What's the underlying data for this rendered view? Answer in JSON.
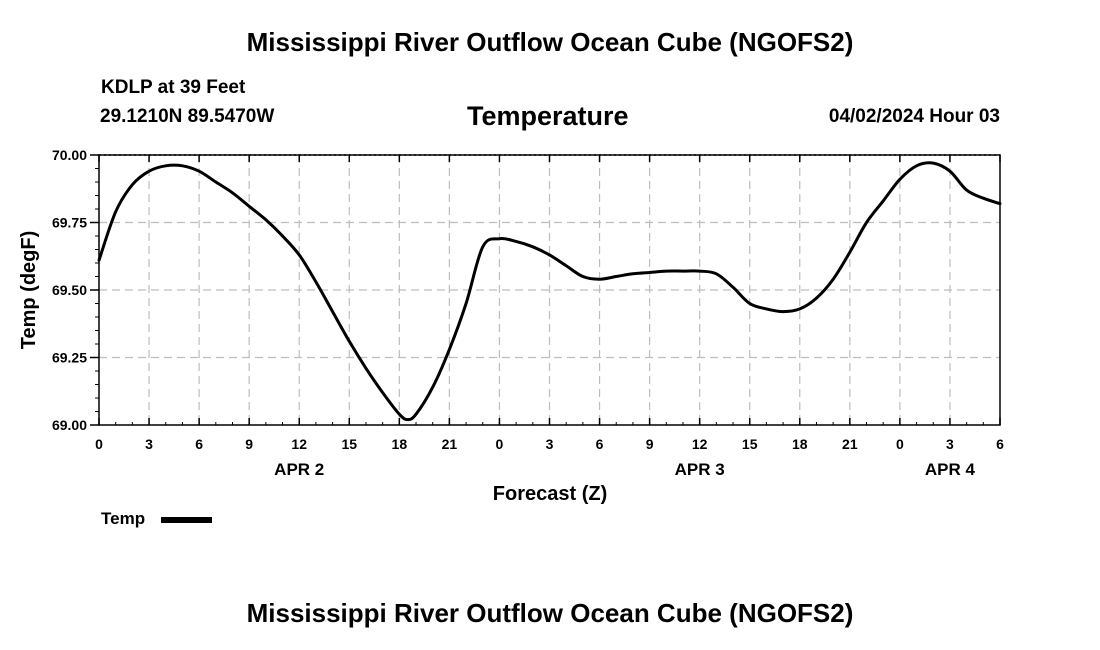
{
  "page": {
    "title_top": "Mississippi River Outflow Ocean Cube (NGOFS2)",
    "title_bottom": "Mississippi River Outflow Ocean Cube (NGOFS2)",
    "station": "KDLP at 39 Feet",
    "coordinates": "29.1210N  89.5470W",
    "datetime": "04/02/2024 Hour 03"
  },
  "chart_data": {
    "type": "line",
    "title": "Temperature",
    "xlabel": "Forecast (Z)",
    "ylabel": "Temp (degF)",
    "ylim": [
      69.0,
      70.0
    ],
    "xlim": [
      0,
      54
    ],
    "yticks": [
      "69.00",
      "69.25",
      "69.50",
      "69.75",
      "70.00"
    ],
    "ytick_values": [
      69.0,
      69.25,
      69.5,
      69.75,
      70.0
    ],
    "xtick_hours": [
      0,
      3,
      6,
      9,
      12,
      15,
      18,
      21,
      24,
      27,
      30,
      33,
      36,
      39,
      42,
      45,
      48,
      51,
      54
    ],
    "xtick_labels": [
      "0",
      "3",
      "6",
      "9",
      "12",
      "15",
      "18",
      "21",
      "0",
      "3",
      "6",
      "9",
      "12",
      "15",
      "18",
      "21",
      "0",
      "3",
      "6"
    ],
    "date_labels": [
      {
        "hour": 12,
        "label": "APR 2"
      },
      {
        "hour": 36,
        "label": "APR 3"
      },
      {
        "hour": 51,
        "label": "APR 4"
      }
    ],
    "grid": true,
    "legend": "bottom-left",
    "series": [
      {
        "name": "Temp",
        "color": "#000000",
        "x": [
          0,
          1,
          2,
          3,
          4,
          5,
          6,
          7,
          8,
          9,
          10,
          11,
          12,
          13,
          14,
          15,
          16,
          17,
          18,
          18.5,
          19,
          20,
          21,
          22,
          23,
          24,
          25,
          26,
          27,
          28,
          29,
          30,
          31,
          32,
          33,
          34,
          35,
          36,
          37,
          38,
          39,
          40,
          41,
          42,
          43,
          44,
          45,
          46,
          47,
          48,
          49,
          50,
          51,
          52,
          53,
          54
        ],
        "values": [
          69.61,
          69.79,
          69.89,
          69.94,
          69.96,
          69.96,
          69.94,
          69.9,
          69.86,
          69.81,
          69.76,
          69.7,
          69.63,
          69.53,
          69.42,
          69.31,
          69.21,
          69.12,
          69.04,
          69.02,
          69.04,
          69.14,
          69.28,
          69.45,
          69.66,
          69.69,
          69.68,
          69.66,
          69.63,
          69.59,
          69.55,
          69.54,
          69.55,
          69.56,
          69.565,
          69.57,
          69.57,
          69.57,
          69.56,
          69.51,
          69.45,
          69.43,
          69.42,
          69.43,
          69.47,
          69.54,
          69.64,
          69.75,
          69.83,
          69.91,
          69.96,
          69.97,
          69.94,
          69.87,
          69.84,
          69.82
        ]
      }
    ]
  }
}
